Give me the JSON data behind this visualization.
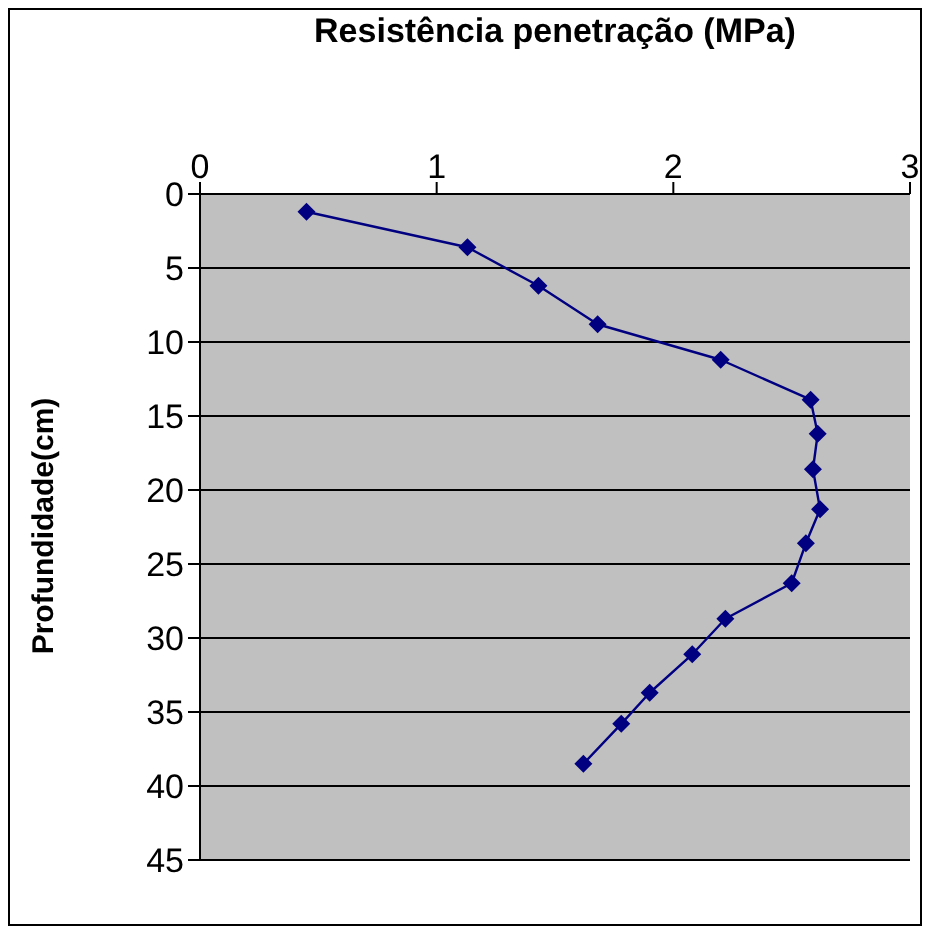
{
  "chart_data": {
    "type": "line",
    "xlabel": "Resistência penetração (MPa)",
    "ylabel": "Profundidade(cm)",
    "xlim": [
      0,
      3
    ],
    "xticks": [
      0,
      1,
      2,
      3
    ],
    "ylim": [
      45,
      0
    ],
    "yticks": [
      0,
      5,
      10,
      15,
      20,
      25,
      30,
      35,
      40,
      45
    ],
    "grid": "y",
    "marker": "diamond",
    "line_style": "solid",
    "series": [
      {
        "color": "#000080",
        "x": [
          0.45,
          1.13,
          1.43,
          1.68,
          2.2,
          2.58,
          2.61,
          2.59,
          2.62,
          2.56,
          2.5,
          2.22,
          2.08,
          1.9,
          1.78,
          1.62
        ],
        "values": [
          1.2,
          3.6,
          6.2,
          8.8,
          11.2,
          13.9,
          16.2,
          18.6,
          21.3,
          23.6,
          26.3,
          28.7,
          31.1,
          33.7,
          35.8,
          38.5
        ]
      }
    ]
  }
}
